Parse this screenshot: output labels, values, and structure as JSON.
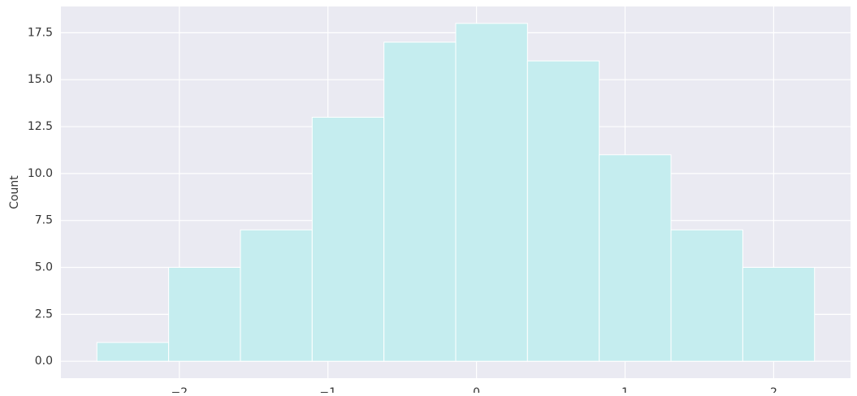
{
  "chart_data": {
    "type": "histogram",
    "ylabel": "Count",
    "bins": [
      -2.555,
      -2.072,
      -1.589,
      -1.106,
      -0.623,
      -0.14,
      0.343,
      0.826,
      1.309,
      1.792,
      2.275
    ],
    "values": [
      1,
      5,
      7,
      13,
      17,
      18,
      16,
      11,
      7,
      5
    ],
    "color": "#c5edef",
    "xlim": [
      -2.797,
      2.517
    ],
    "ylim": [
      -0.9,
      18.9
    ],
    "xticks": [
      {
        "value": -2,
        "label": "−2"
      },
      {
        "value": -1,
        "label": "−1"
      },
      0,
      1,
      2
    ],
    "yticks": [
      {
        "value": 0,
        "label": "0.0"
      },
      2.5,
      {
        "value": 5,
        "label": "5.0"
      },
      7.5,
      {
        "value": 10,
        "label": "10.0"
      },
      12.5,
      {
        "value": 15,
        "label": "15.0"
      },
      17.5
    ],
    "grid": true
  }
}
